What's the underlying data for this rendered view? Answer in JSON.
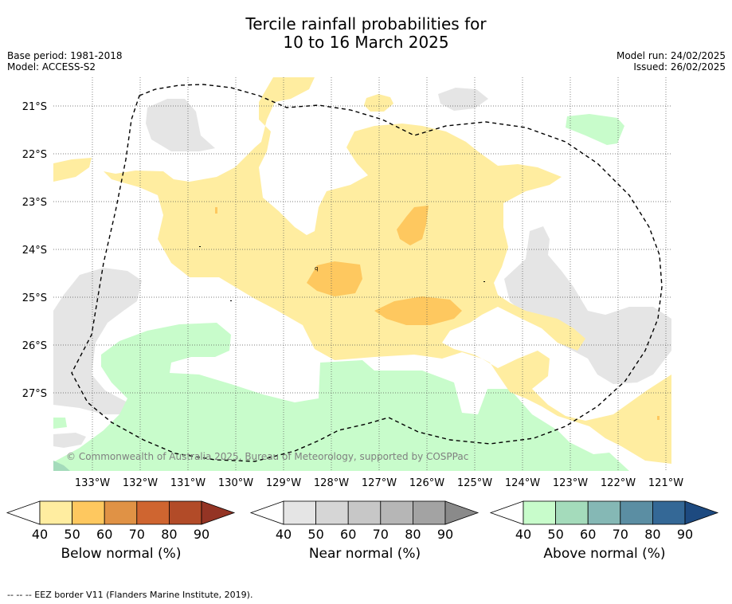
{
  "title_line1": "Tercile rainfall probabilities for",
  "title_line2": "10 to 16 March 2025",
  "base_period": "Base period: 1981-2018",
  "model": "Model: ACCESS-S2",
  "model_run": "Model run: 24/02/2025",
  "issued": "Issued: 26/02/2025",
  "copyright": "© Commonwealth of Australia 2025, Bureau of Meteorology, supported by COSPPac",
  "lat_labels": [
    "21°S",
    "22°S",
    "23°S",
    "24°S",
    "25°S",
    "26°S",
    "27°S"
  ],
  "lon_labels": [
    "133°W",
    "132°W",
    "131°W",
    "130°W",
    "129°W",
    "128°W",
    "127°W",
    "126°W",
    "125°W",
    "124°W",
    "123°W",
    "122°W",
    "121°W"
  ],
  "colorbars": [
    {
      "title": "Below normal (%)",
      "ticks": [
        "40",
        "50",
        "60",
        "70",
        "80",
        "90"
      ],
      "colors": [
        "#ffeda0",
        "#fec85f",
        "#e09245",
        "#cf6530",
        "#b24b28",
        "#943424"
      ]
    },
    {
      "title": "Near normal (%)",
      "ticks": [
        "40",
        "50",
        "60",
        "70",
        "80",
        "90"
      ],
      "colors": [
        "#e5e5e5",
        "#d6d6d6",
        "#c7c7c7",
        "#b6b6b6",
        "#a3a3a3",
        "#8a8a8a"
      ]
    },
    {
      "title": "Above normal (%)",
      "ticks": [
        "40",
        "50",
        "60",
        "70",
        "80",
        "90"
      ],
      "colors": [
        "#c8fccb",
        "#a4dbbb",
        "#85b8b5",
        "#5b8ea3",
        "#346896",
        "#1d4a80"
      ]
    }
  ],
  "footnote": "--  --  -- EEZ border V11 (Flanders Marine Institute, 2019).",
  "map_colors": {
    "below": "#ffeda0",
    "below_strong": "#fec85f",
    "near": "#e5e5e5",
    "above": "#c8fccb",
    "above_strong": "#a4dbbb"
  }
}
